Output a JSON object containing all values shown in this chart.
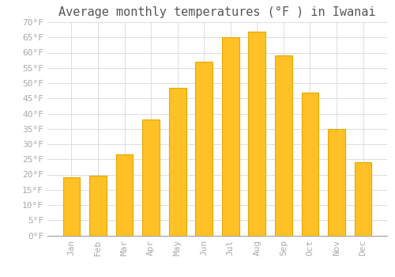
{
  "title": "Average monthly temperatures (°F ) in Iwanai",
  "months": [
    "Jan",
    "Feb",
    "Mar",
    "Apr",
    "May",
    "Jun",
    "Jul",
    "Aug",
    "Sep",
    "Oct",
    "Nov",
    "Dec"
  ],
  "values": [
    19,
    19.5,
    26.5,
    38,
    48.5,
    57,
    65,
    67,
    59,
    47,
    35,
    24
  ],
  "bar_color": "#FFC125",
  "bar_edge_color": "#E8A800",
  "background_color": "#FFFFFF",
  "grid_color": "#DDDDDD",
  "ylim": [
    0,
    70
  ],
  "yticks": [
    0,
    5,
    10,
    15,
    20,
    25,
    30,
    35,
    40,
    45,
    50,
    55,
    60,
    65,
    70
  ],
  "title_fontsize": 11,
  "tick_fontsize": 8,
  "title_color": "#555555",
  "tick_color": "#AAAAAA"
}
